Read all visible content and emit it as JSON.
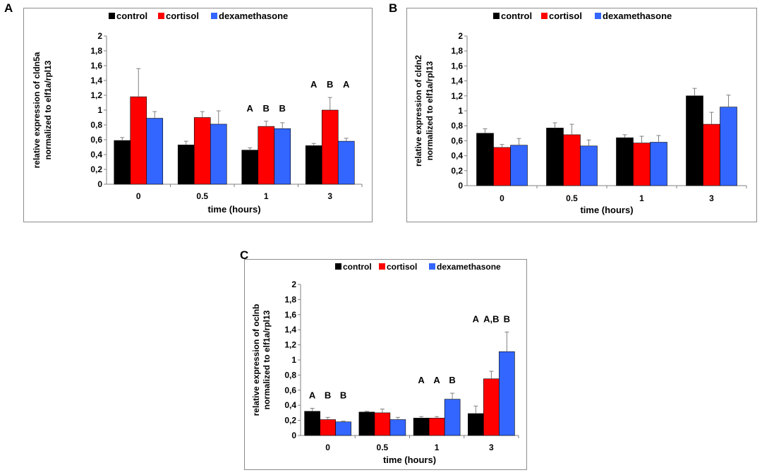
{
  "panels": [
    {
      "letter": "A"
    },
    {
      "letter": "B"
    },
    {
      "letter": "C"
    }
  ],
  "colors": {
    "control": "#000000",
    "cortisol": "#ff0000",
    "dexamethasone": "#3366ff",
    "axis": "#808080"
  },
  "chart_data": [
    {
      "type": "bar",
      "panel": "A",
      "categories": [
        "0",
        "0.5",
        "1",
        "3"
      ],
      "series": [
        {
          "name": "control",
          "values": [
            0.59,
            0.53,
            0.46,
            0.52
          ],
          "errors": [
            0.04,
            0.05,
            0.03,
            0.03
          ]
        },
        {
          "name": "cortisol",
          "values": [
            1.18,
            0.9,
            0.78,
            1.0
          ],
          "errors": [
            0.38,
            0.08,
            0.07,
            0.17
          ]
        },
        {
          "name": "dexamethasone",
          "values": [
            0.89,
            0.81,
            0.75,
            0.58
          ],
          "errors": [
            0.09,
            0.18,
            0.08,
            0.04
          ]
        }
      ],
      "annotations": [
        {
          "category": "1",
          "labels": [
            "A",
            "B",
            "B"
          ]
        },
        {
          "category": "3",
          "labels": [
            "A",
            "B",
            "A"
          ]
        }
      ],
      "ylabel": [
        "relative expression of cldn5a",
        "normalized to elf1a/rpl13"
      ],
      "xlabel": "time (hours)",
      "yticks": [
        "0",
        "0,2",
        "0,4",
        "0,6",
        "0,8",
        "1",
        "1,2",
        "1,4",
        "1,6",
        "1,8",
        "2"
      ],
      "ylim": [
        0,
        2
      ]
    },
    {
      "type": "bar",
      "panel": "B",
      "categories": [
        "0",
        "0.5",
        "1",
        "3"
      ],
      "series": [
        {
          "name": "control",
          "values": [
            0.7,
            0.77,
            0.64,
            1.2
          ],
          "errors": [
            0.06,
            0.07,
            0.04,
            0.1
          ]
        },
        {
          "name": "cortisol",
          "values": [
            0.51,
            0.68,
            0.57,
            0.82
          ],
          "errors": [
            0.04,
            0.14,
            0.09,
            0.16
          ]
        },
        {
          "name": "dexamethasone",
          "values": [
            0.54,
            0.53,
            0.58,
            1.05
          ],
          "errors": [
            0.09,
            0.08,
            0.09,
            0.16
          ]
        }
      ],
      "annotations": [],
      "ylabel": [
        "relative expression of cldn2",
        "normalized to elf1a/rpl13"
      ],
      "xlabel": "time (hours)",
      "yticks": [
        "0",
        "0,2",
        "0,4",
        "0,6",
        "0,8",
        "1",
        "1,2",
        "1,4",
        "1,6",
        "1,8",
        "2"
      ],
      "ylim": [
        0,
        2
      ]
    },
    {
      "type": "bar",
      "panel": "C",
      "categories": [
        "0",
        "0.5",
        "1",
        "3"
      ],
      "series": [
        {
          "name": "control",
          "values": [
            0.32,
            0.31,
            0.23,
            0.29
          ],
          "errors": [
            0.04,
            0.01,
            0.02,
            0.1
          ]
        },
        {
          "name": "cortisol",
          "values": [
            0.21,
            0.3,
            0.23,
            0.75
          ],
          "errors": [
            0.03,
            0.05,
            0.02,
            0.1
          ]
        },
        {
          "name": "dexamethasone",
          "values": [
            0.18,
            0.21,
            0.48,
            1.11
          ],
          "errors": [
            0.01,
            0.03,
            0.08,
            0.26
          ]
        }
      ],
      "annotations": [
        {
          "category": "0",
          "labels": [
            "A",
            "B",
            "B"
          ]
        },
        {
          "category": "1",
          "labels": [
            "A",
            "A",
            "B"
          ]
        },
        {
          "category": "3",
          "labels": [
            "A",
            "A,B",
            "B"
          ]
        }
      ],
      "ylabel": [
        "relative expression of oclnb",
        "normalized to elf1a/rpl13"
      ],
      "xlabel": "time (hours)",
      "yticks": [
        "0",
        "0,2",
        "0,4",
        "0,6",
        "0,8",
        "1",
        "1,2",
        "1,4",
        "1,6",
        "1,8",
        "2"
      ],
      "ylim": [
        0,
        2
      ]
    }
  ]
}
